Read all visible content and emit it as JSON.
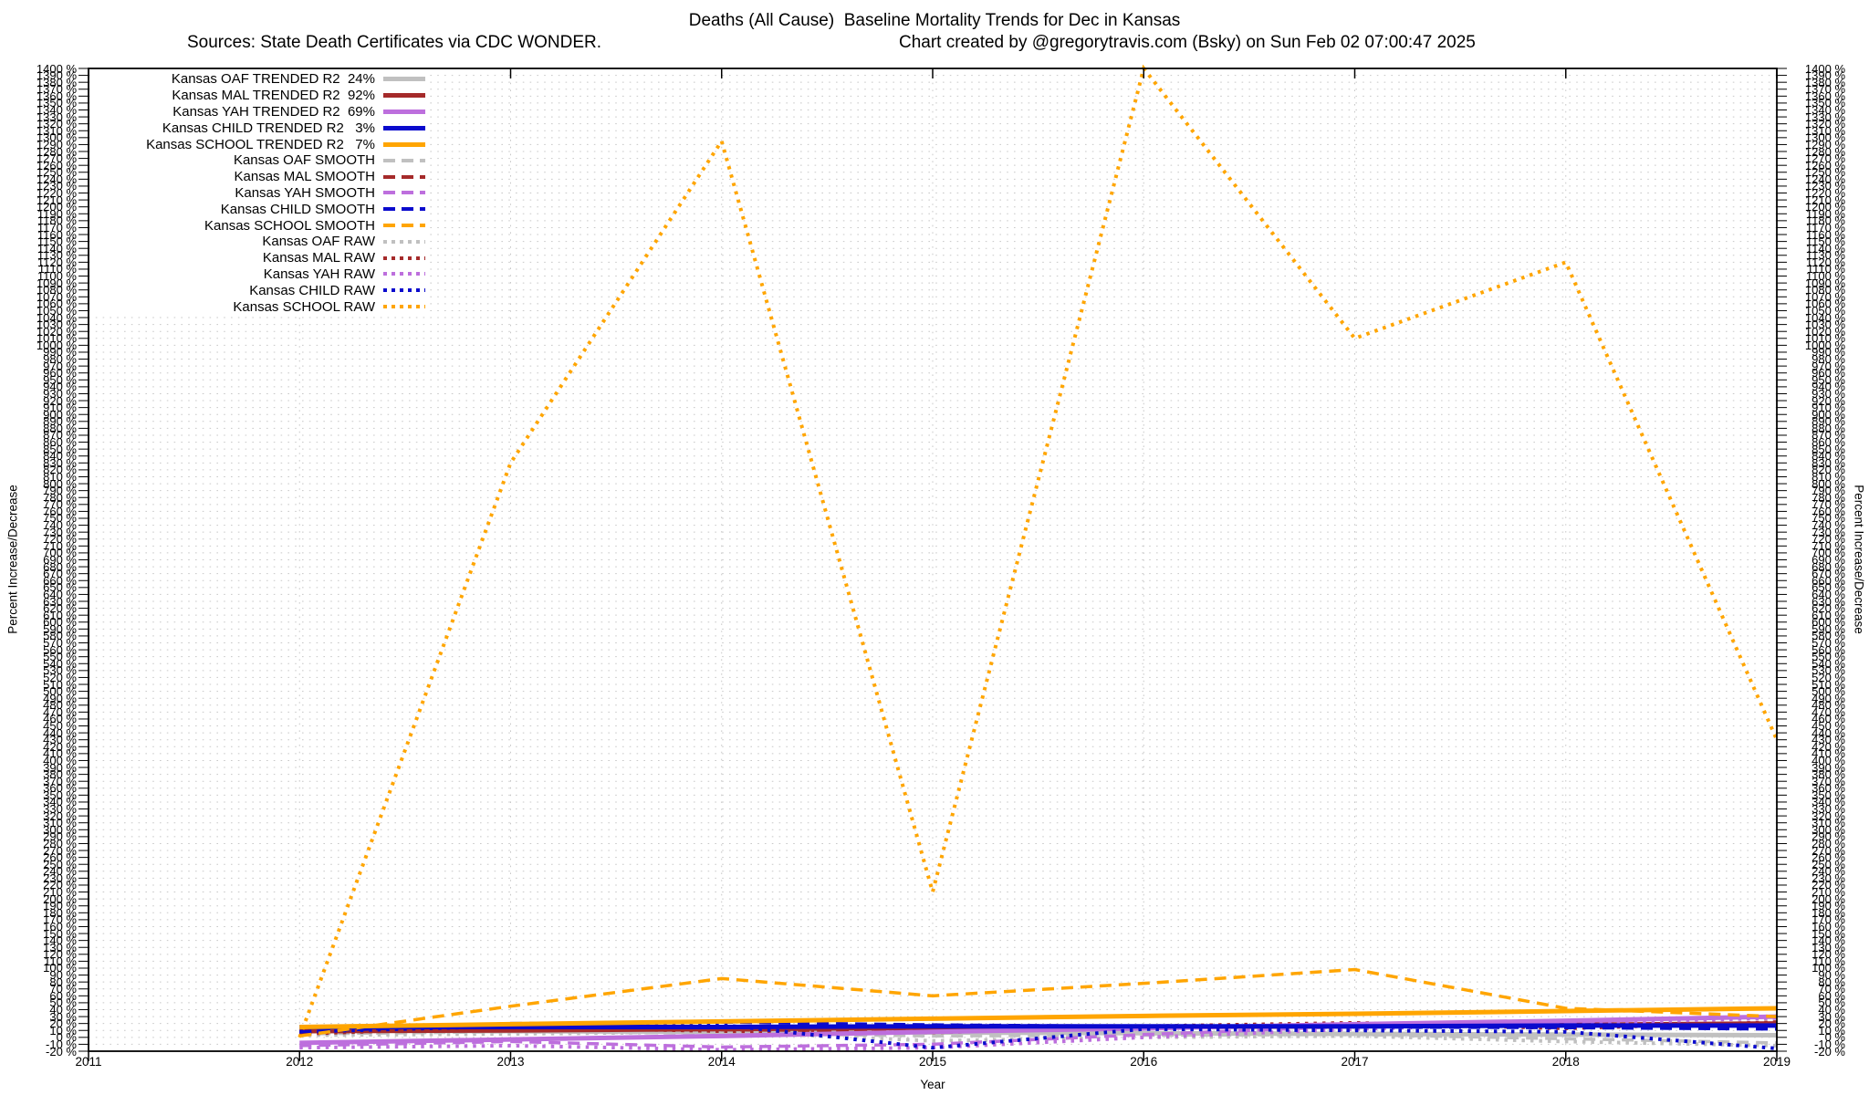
{
  "title": "Deaths (All Cause)  Baseline Mortality Trends for Dec in Kansas",
  "subtitle_left": "Sources: State Death Certificates via CDC WONDER.",
  "subtitle_right": "Chart created by @gregorytravis.com (Bsky) on Sun Feb 02 07:00:47 2025",
  "x_axis": {
    "label": "Year",
    "ticks": [
      2011,
      2012,
      2013,
      2014,
      2015,
      2016,
      2017,
      2018,
      2019
    ]
  },
  "y_axis": {
    "label": "Percent Increase/Decrease",
    "min": -20,
    "max": 1400,
    "step": 10,
    "unit": "%"
  },
  "colors": {
    "oaf": "#c0c0c0",
    "mal": "#a52a2a",
    "yah": "#bd6fdd",
    "child": "#0a0acd",
    "school": "#ffa500"
  },
  "legend": {
    "items": [
      {
        "label": "Kansas OAF TRENDED R2  24%",
        "color": "#c0c0c0",
        "style": "solid"
      },
      {
        "label": "Kansas MAL TRENDED R2  92%",
        "color": "#a52a2a",
        "style": "solid"
      },
      {
        "label": "Kansas YAH TRENDED R2  69%",
        "color": "#bd6fdd",
        "style": "solid"
      },
      {
        "label": "Kansas CHILD TRENDED R2   3%",
        "color": "#0a0acd",
        "style": "solid"
      },
      {
        "label": "Kansas SCHOOL TRENDED R2   7%",
        "color": "#ffa500",
        "style": "solid"
      },
      {
        "label": "Kansas OAF SMOOTH",
        "color": "#c0c0c0",
        "style": "dash"
      },
      {
        "label": "Kansas MAL SMOOTH",
        "color": "#a52a2a",
        "style": "dash"
      },
      {
        "label": "Kansas YAH SMOOTH",
        "color": "#bd6fdd",
        "style": "dash"
      },
      {
        "label": "Kansas CHILD SMOOTH",
        "color": "#0a0acd",
        "style": "dash"
      },
      {
        "label": "Kansas SCHOOL SMOOTH",
        "color": "#ffa500",
        "style": "dash"
      },
      {
        "label": "Kansas OAF RAW",
        "color": "#c0c0c0",
        "style": "dot"
      },
      {
        "label": "Kansas MAL RAW",
        "color": "#a52a2a",
        "style": "dot"
      },
      {
        "label": "Kansas YAH RAW",
        "color": "#bd6fdd",
        "style": "dot"
      },
      {
        "label": "Kansas CHILD RAW",
        "color": "#0a0acd",
        "style": "dot"
      },
      {
        "label": "Kansas SCHOOL RAW",
        "color": "#ffa500",
        "style": "dot"
      }
    ]
  },
  "chart_data": {
    "type": "line",
    "title": "Deaths (All Cause)  Baseline Mortality Trends for Dec in Kansas",
    "xlabel": "Year",
    "ylabel": "Percent Increase/Decrease",
    "xlim": [
      2011,
      2019
    ],
    "ylim": [
      -20,
      1400
    ],
    "grid": true,
    "legend_position": "top-left",
    "x": [
      2012,
      2013,
      2014,
      2015,
      2016,
      2017,
      2018,
      2019
    ],
    "series": [
      {
        "name": "Kansas OAF TRENDED R2 24%",
        "style": "solid",
        "color": "#c0c0c0",
        "values": [
          10,
          9,
          8,
          7,
          6,
          5,
          4,
          3
        ]
      },
      {
        "name": "Kansas OAF SMOOTH",
        "style": "dash",
        "color": "#c0c0c0",
        "values": [
          5,
          8,
          6,
          2,
          3,
          4,
          -2,
          -8
        ]
      },
      {
        "name": "Kansas OAF RAW",
        "style": "dot",
        "color": "#c0c0c0",
        "values": [
          3,
          5,
          8,
          -5,
          0,
          2,
          -6,
          -12
        ]
      },
      {
        "name": "Kansas MAL TRENDED R2 92%",
        "style": "solid",
        "color": "#a52a2a",
        "values": [
          9,
          10,
          12,
          14,
          15,
          16,
          18,
          20
        ]
      },
      {
        "name": "Kansas MAL SMOOTH",
        "style": "dash",
        "color": "#a52a2a",
        "values": [
          7,
          13,
          11,
          9,
          14,
          17,
          15,
          20
        ]
      },
      {
        "name": "Kansas MAL RAW",
        "style": "dot",
        "color": "#a52a2a",
        "values": [
          5,
          15,
          9,
          7,
          16,
          21,
          13,
          22
        ]
      },
      {
        "name": "Kansas YAH TRENDED R2 69%",
        "style": "solid",
        "color": "#bd6fdd",
        "values": [
          -8,
          -3,
          2,
          8,
          13,
          19,
          24,
          30
        ]
      },
      {
        "name": "Kansas YAH SMOOTH",
        "style": "dash",
        "color": "#bd6fdd",
        "values": [
          -12,
          -6,
          -14,
          -10,
          4,
          16,
          22,
          31
        ]
      },
      {
        "name": "Kansas YAH RAW",
        "style": "dot",
        "color": "#bd6fdd",
        "values": [
          -15,
          -12,
          -18,
          -15,
          0,
          12,
          20,
          28
        ]
      },
      {
        "name": "Kansas CHILD TRENDED R2 3%",
        "style": "solid",
        "color": "#0a0acd",
        "values": [
          15,
          15,
          15,
          16,
          16,
          16,
          17,
          17
        ]
      },
      {
        "name": "Kansas CHILD SMOOTH",
        "style": "dash",
        "color": "#0a0acd",
        "values": [
          8,
          20,
          22,
          18,
          16,
          15,
          14,
          12
        ]
      },
      {
        "name": "Kansas CHILD RAW",
        "style": "dot",
        "color": "#0a0acd",
        "values": [
          8,
          16,
          18,
          -15,
          12,
          10,
          8,
          -16
        ]
      },
      {
        "name": "Kansas SCHOOL TRENDED R2 7%",
        "style": "solid",
        "color": "#ffa500",
        "values": [
          15,
          19,
          23,
          27,
          31,
          34,
          38,
          42
        ]
      },
      {
        "name": "Kansas SCHOOL SMOOTH",
        "style": "dash",
        "color": "#ffa500",
        "values": [
          2,
          45,
          85,
          60,
          78,
          98,
          42,
          30
        ]
      },
      {
        "name": "Kansas SCHOOL RAW",
        "style": "dot",
        "color": "#ffa500",
        "values": [
          0,
          830,
          1295,
          210,
          1400,
          1010,
          1120,
          430
        ]
      }
    ]
  }
}
